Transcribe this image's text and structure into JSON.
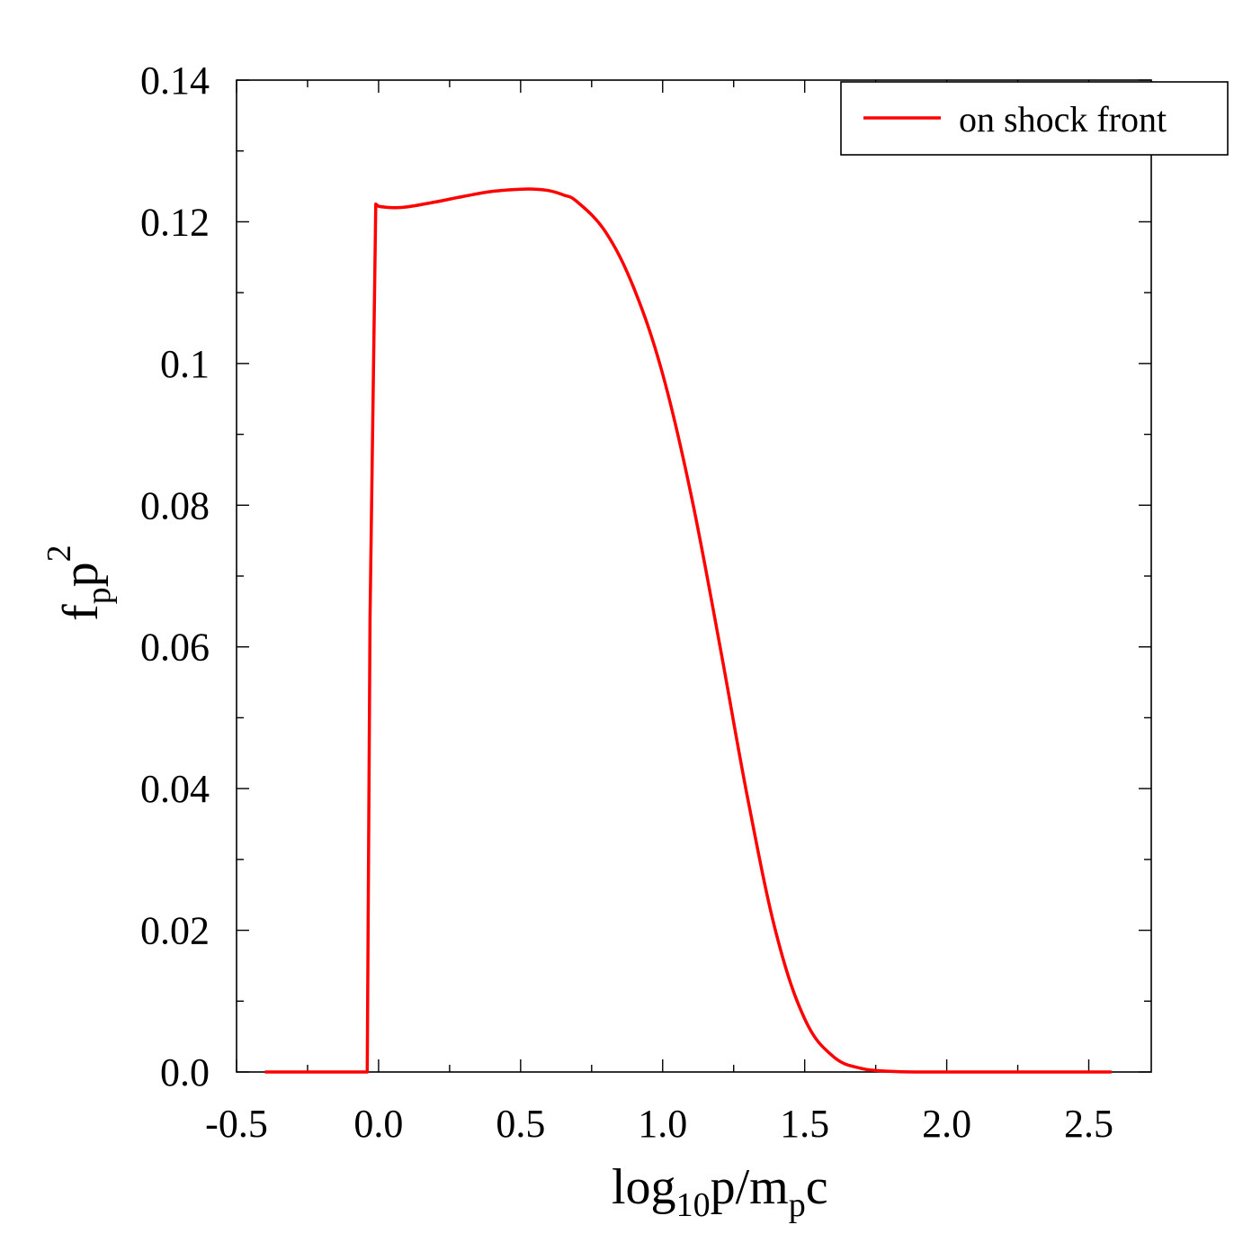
{
  "chart_data": {
    "type": "line",
    "xlabel": {
      "main": "log",
      "sub1": "10",
      "mid": "p/m",
      "sub2": "p",
      "end": "c"
    },
    "ylabel": {
      "main": "f",
      "sub": "p",
      "mid": "p",
      "sup": "2"
    },
    "xlim": [
      -0.5,
      2.72
    ],
    "ylim": [
      0,
      0.14
    ],
    "x_ticks": [
      -0.5,
      0.0,
      0.5,
      1.0,
      1.5,
      2.0,
      2.5
    ],
    "x_tick_labels": [
      "-0.5",
      "0.0",
      "0.5",
      "1.0",
      "1.5",
      "2.0",
      "2.5"
    ],
    "y_ticks": [
      0,
      0.02,
      0.04,
      0.06,
      0.08,
      0.1,
      0.12,
      0.14
    ],
    "y_tick_labels": [
      "0.0",
      "0.02",
      "0.04",
      "0.06",
      "0.08",
      "0.1",
      "0.12",
      "0.14"
    ],
    "grid": false,
    "legend": {
      "position": "top-right"
    },
    "series": [
      {
        "name": "on shock front",
        "color": "#ff0000",
        "x": [
          -0.4,
          -0.04,
          -0.03,
          -0.01,
          0.0,
          0.05,
          0.1,
          0.2,
          0.3,
          0.4,
          0.5,
          0.55,
          0.6,
          0.65,
          0.7,
          0.8,
          0.9,
          1.0,
          1.1,
          1.2,
          1.3,
          1.4,
          1.5,
          1.6,
          1.7,
          1.8,
          1.9,
          2.0,
          2.1,
          2.3,
          2.58
        ],
        "y": [
          0.0,
          0.0,
          0.064,
          0.1225,
          0.1222,
          0.122,
          0.1221,
          0.1228,
          0.1236,
          0.1243,
          0.1246,
          0.1246,
          0.1244,
          0.1238,
          0.1228,
          0.1185,
          0.1105,
          0.0985,
          0.0815,
          0.0605,
          0.0385,
          0.0195,
          0.0075,
          0.0022,
          0.0005,
          0.0001,
          0.0,
          0.0,
          0.0,
          0.0,
          0.0
        ]
      }
    ]
  }
}
